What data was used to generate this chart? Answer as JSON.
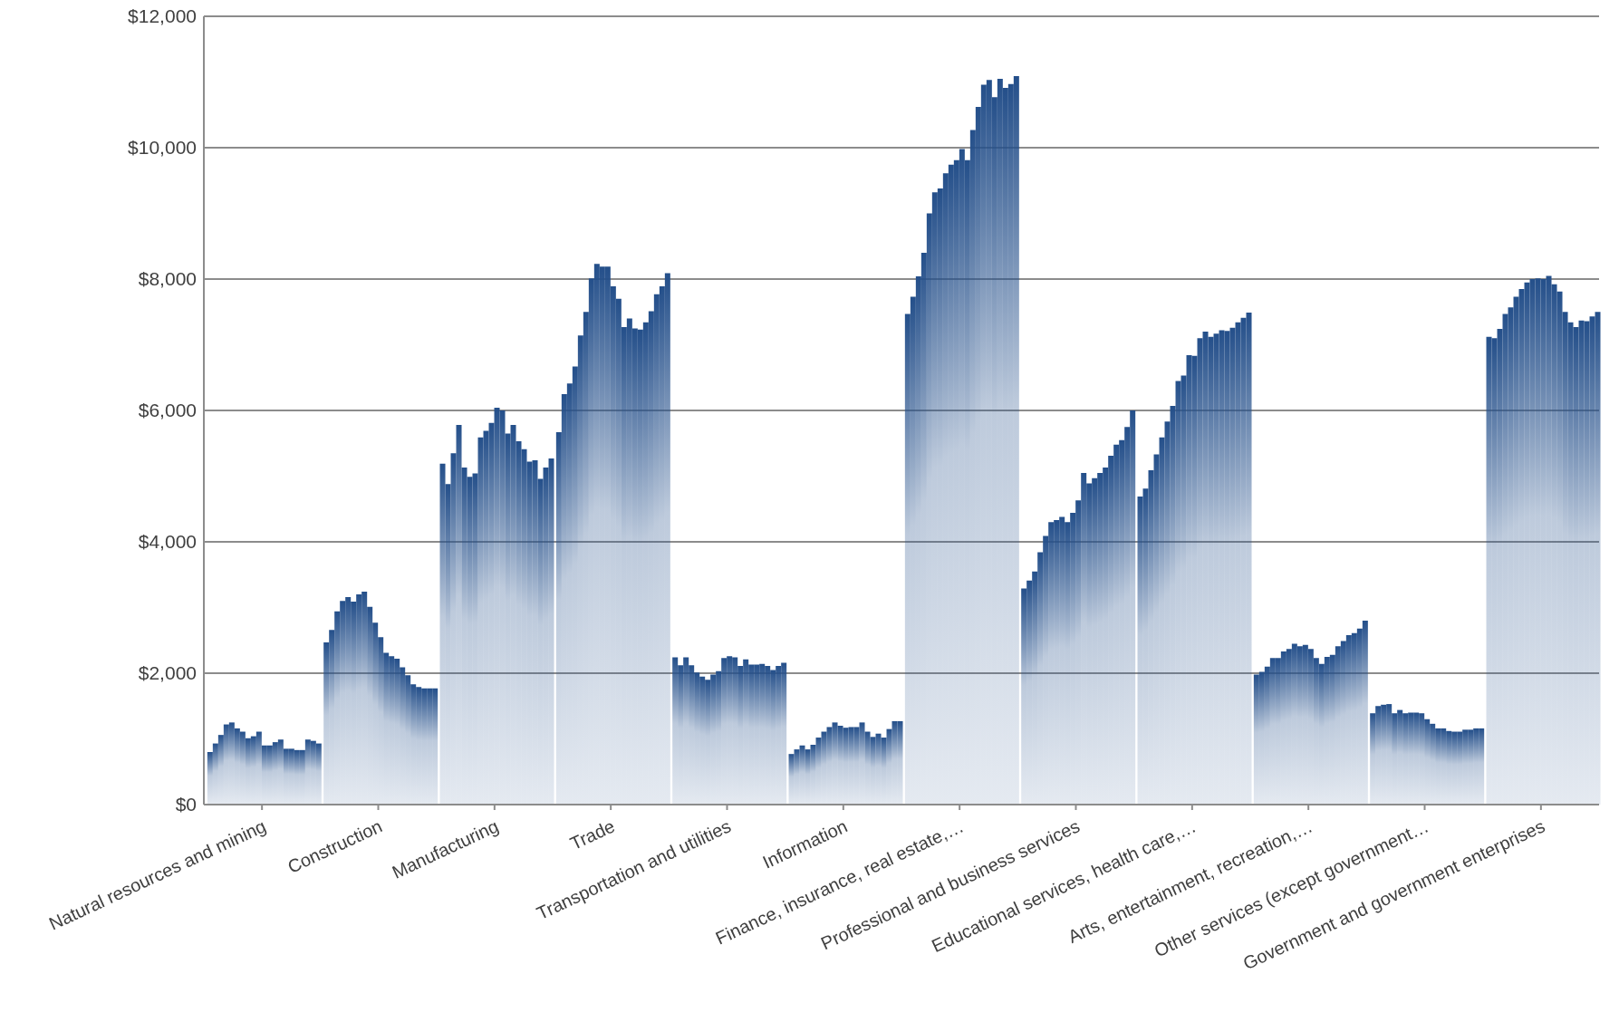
{
  "chart_data": {
    "type": "bar",
    "categories": [
      "Natural resources and mining",
      "Construction",
      "Manufacturing",
      "Trade",
      "Transportation and utilities",
      "Information",
      "Finance, insurance, real estate,…",
      "Professional and business services",
      "Educational services, health care,…",
      "Arts, entertainment, recreation,…",
      "Other services (except government…",
      "Government and government enterprises"
    ],
    "series": [
      {
        "color": "#244f8a",
        "values": [
          800,
          2470,
          5190,
          5670,
          2240,
          770,
          7470,
          3290,
          4690,
          1980,
          1390,
          7120
        ]
      },
      {
        "color": "#244f8a",
        "values": [
          930,
          2660,
          4880,
          6250,
          2120,
          840,
          7730,
          3410,
          4810,
          2020,
          1500,
          7100
        ]
      },
      {
        "color": "#244f8a",
        "values": [
          1060,
          2940,
          5350,
          6410,
          2240,
          900,
          8040,
          3550,
          5090,
          2100,
          1520,
          7240
        ]
      },
      {
        "color": "#244f8a",
        "values": [
          1220,
          3100,
          5780,
          6670,
          2120,
          840,
          8400,
          3840,
          5330,
          2230,
          1530,
          7470
        ]
      },
      {
        "color": "#244f8a",
        "values": [
          1250,
          3160,
          5130,
          7140,
          2010,
          910,
          9000,
          4090,
          5590,
          2230,
          1390,
          7570
        ]
      },
      {
        "color": "#244f8a",
        "values": [
          1160,
          3090,
          4990,
          7500,
          1950,
          1020,
          9320,
          4300,
          5830,
          2330,
          1440,
          7730
        ]
      },
      {
        "color": "#244f8a",
        "values": [
          1110,
          3200,
          5040,
          8010,
          1900,
          1110,
          9380,
          4330,
          6070,
          2370,
          1390,
          7850
        ]
      },
      {
        "color": "#244f8a",
        "values": [
          1010,
          3240,
          5590,
          8230,
          1980,
          1180,
          9610,
          4380,
          6450,
          2450,
          1400,
          7950
        ]
      },
      {
        "color": "#244f8a",
        "values": [
          1040,
          3010,
          5690,
          8190,
          2030,
          1250,
          9740,
          4300,
          6530,
          2410,
          1400,
          8000
        ]
      },
      {
        "color": "#244f8a",
        "values": [
          1110,
          2770,
          5810,
          8190,
          2230,
          1200,
          9810,
          4440,
          6840,
          2430,
          1390,
          8010
        ]
      },
      {
        "color": "#244f8a",
        "values": [
          900,
          2550,
          6040,
          7890,
          2260,
          1170,
          9980,
          4630,
          6830,
          2370,
          1300,
          8000
        ]
      },
      {
        "color": "#244f8a",
        "values": [
          900,
          2310,
          6000,
          7700,
          2240,
          1180,
          9810,
          5050,
          7100,
          2230,
          1230,
          8050
        ]
      },
      {
        "color": "#244f8a",
        "values": [
          950,
          2260,
          5650,
          7270,
          2110,
          1180,
          10270,
          4890,
          7200,
          2140,
          1160,
          7920
        ]
      },
      {
        "color": "#244f8a",
        "values": [
          990,
          2220,
          5780,
          7400,
          2210,
          1250,
          10620,
          4970,
          7120,
          2250,
          1160,
          7810
        ]
      },
      {
        "color": "#244f8a",
        "values": [
          850,
          2090,
          5530,
          7250,
          2130,
          1110,
          10960,
          5050,
          7170,
          2280,
          1120,
          7500
        ]
      },
      {
        "color": "#244f8a",
        "values": [
          850,
          1970,
          5410,
          7230,
          2130,
          1030,
          11030,
          5130,
          7220,
          2410,
          1110,
          7340
        ]
      },
      {
        "color": "#244f8a",
        "values": [
          830,
          1830,
          5220,
          7340,
          2140,
          1080,
          10770,
          5310,
          7210,
          2490,
          1110,
          7270
        ]
      },
      {
        "color": "#244f8a",
        "values": [
          830,
          1790,
          5240,
          7510,
          2110,
          1020,
          11050,
          5480,
          7260,
          2580,
          1140,
          7370
        ]
      },
      {
        "color": "#244f8a",
        "values": [
          990,
          1770,
          4960,
          7770,
          2050,
          1150,
          10910,
          5550,
          7340,
          2610,
          1140,
          7360
        ]
      },
      {
        "color": "#244f8a",
        "values": [
          970,
          1770,
          5130,
          7890,
          2110,
          1270,
          10970,
          5750,
          7410,
          2680,
          1160,
          7430
        ]
      },
      {
        "color": "#244f8a",
        "values": [
          930,
          1770,
          5270,
          8090,
          2160,
          1270,
          11090,
          6000,
          7490,
          2800,
          1160,
          7500
        ]
      }
    ],
    "ylim": [
      0,
      12000
    ],
    "yticks": [
      {
        "value": 0,
        "label": "$0"
      },
      {
        "value": 2000,
        "label": "$2,000"
      },
      {
        "value": 4000,
        "label": "$4,000"
      },
      {
        "value": 6000,
        "label": "$6,000"
      },
      {
        "value": 8000,
        "label": "$8,000"
      },
      {
        "value": 10000,
        "label": "$10,000"
      },
      {
        "value": 12000,
        "label": "$12,000"
      }
    ],
    "grid": "y"
  }
}
